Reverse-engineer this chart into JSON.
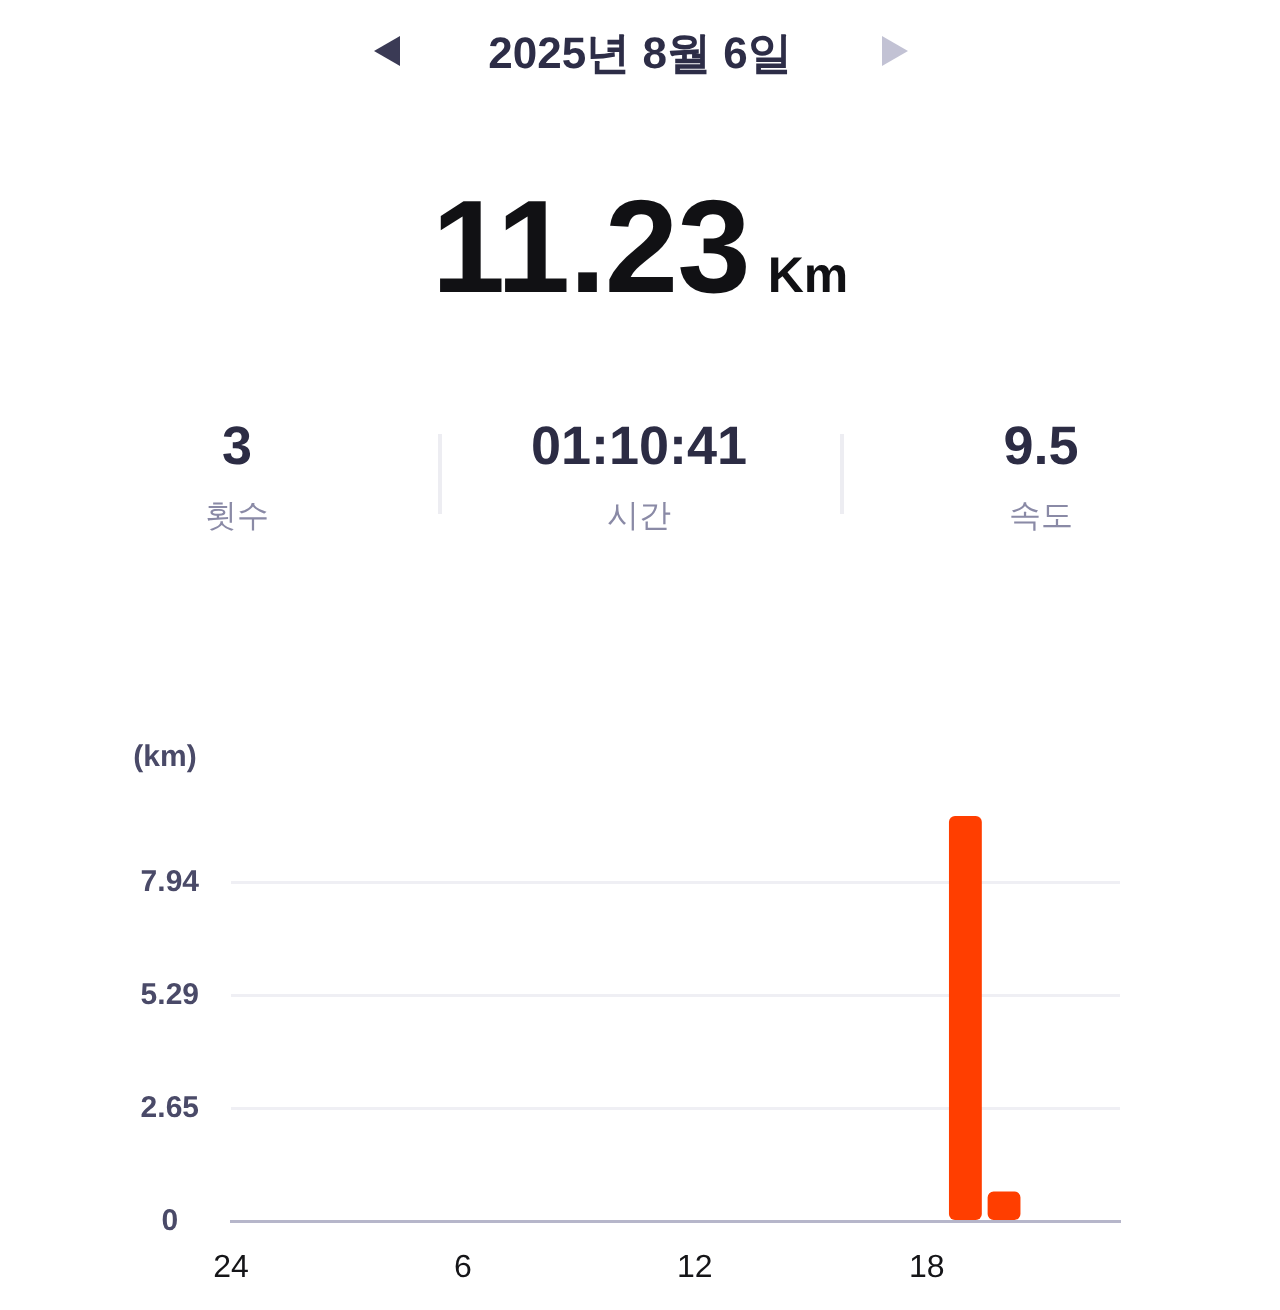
{
  "chart_data": {
    "type": "bar",
    "title": "2025년 8월 6일",
    "annotations": [
      "11.23",
      "Km",
      "3",
      "횟수",
      "01:10:41",
      "시간",
      "9.5",
      "속도"
    ],
    "ylabel": "(km)",
    "categories": [
      "24",
      null,
      null,
      null,
      null,
      null,
      "6",
      null,
      null,
      null,
      null,
      null,
      "12",
      null,
      null,
      null,
      null,
      null,
      "18",
      null,
      null,
      null,
      null,
      null
    ],
    "values": [
      null,
      null,
      null,
      null,
      null,
      null,
      null,
      null,
      null,
      null,
      null,
      null,
      null,
      null,
      null,
      null,
      null,
      null,
      null,
      9.5,
      0.7,
      null,
      null,
      null
    ],
    "color": "#ff3e00",
    "ylim": [
      0,
      9.5
    ],
    "yticks": [
      0,
      2.65,
      5.29,
      7.94
    ],
    "grid": "y"
  }
}
